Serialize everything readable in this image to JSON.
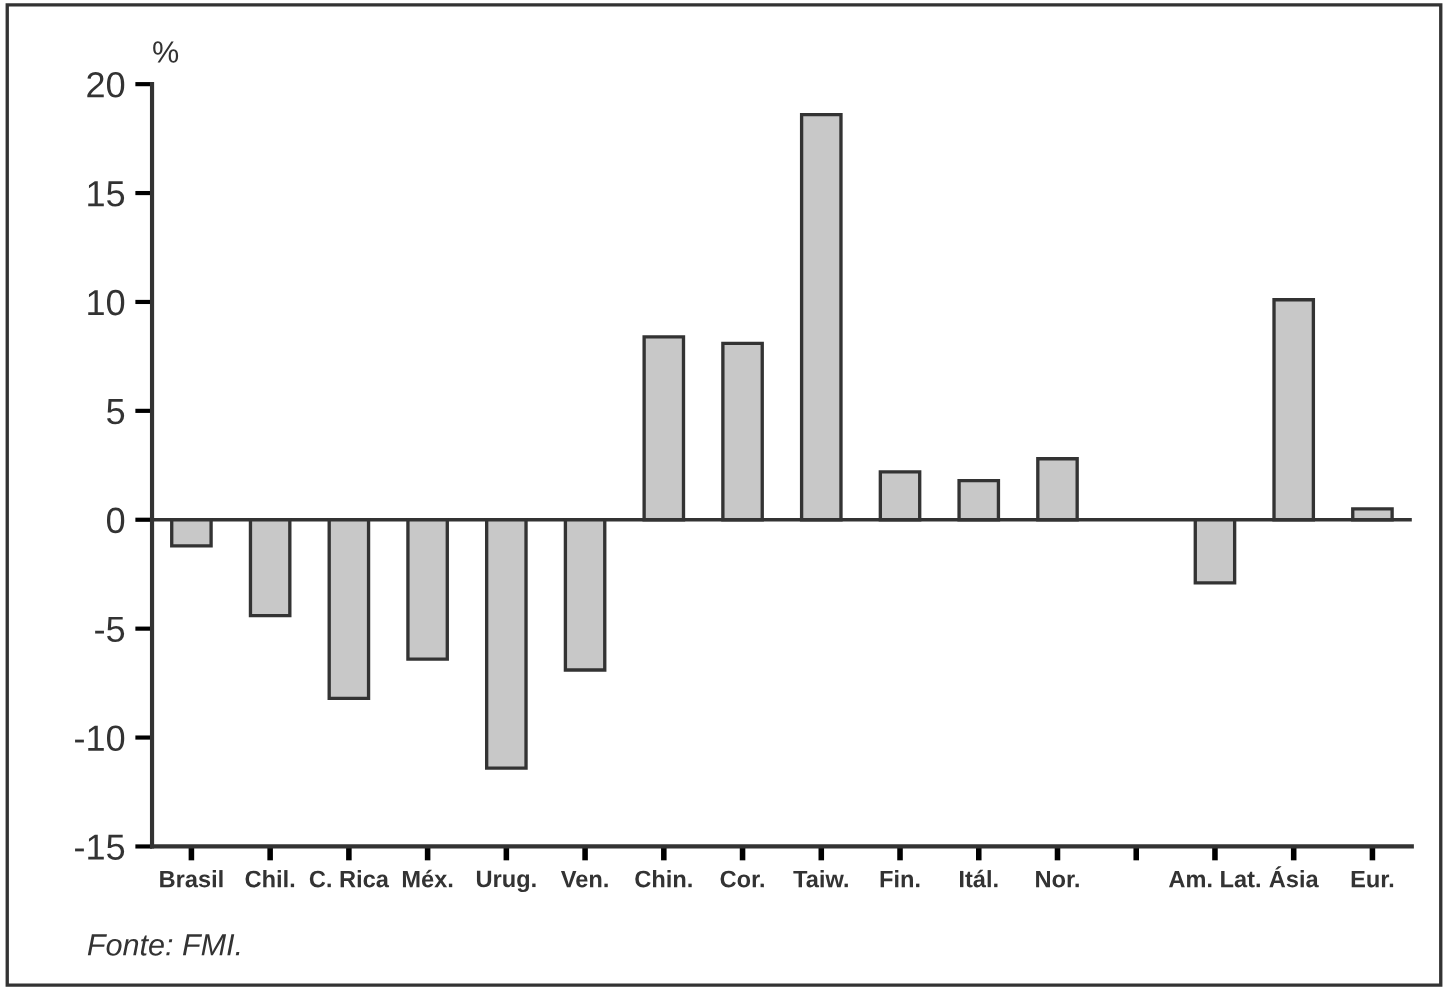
{
  "chart_data": {
    "type": "bar",
    "ylabel": "%",
    "categories": [
      "Brasil",
      "Chil.",
      "C. Rica",
      "Méx.",
      "Urug.",
      "Ven.",
      "Chin.",
      "Cor.",
      "Taiw.",
      "Fin.",
      "Itál.",
      "Nor.",
      null,
      "Am. Lat.",
      "Ásia",
      "Eur."
    ],
    "values": [
      -1.2,
      -4.4,
      -8.2,
      -6.4,
      -11.4,
      -6.9,
      8.4,
      8.1,
      18.6,
      2.2,
      1.8,
      2.8,
      null,
      -2.9,
      10.1,
      0.5
    ],
    "color": "#c8c8c8",
    "ylim": [
      -15,
      20
    ],
    "yticks": [
      -15,
      -10,
      -5,
      0,
      5,
      10,
      15,
      20
    ],
    "ref_lines": [
      {
        "axis": "y",
        "value": 0,
        "color": "#333333"
      }
    ],
    "grid": false,
    "legend": false,
    "annotations": [
      "Fonte: FMI."
    ]
  }
}
